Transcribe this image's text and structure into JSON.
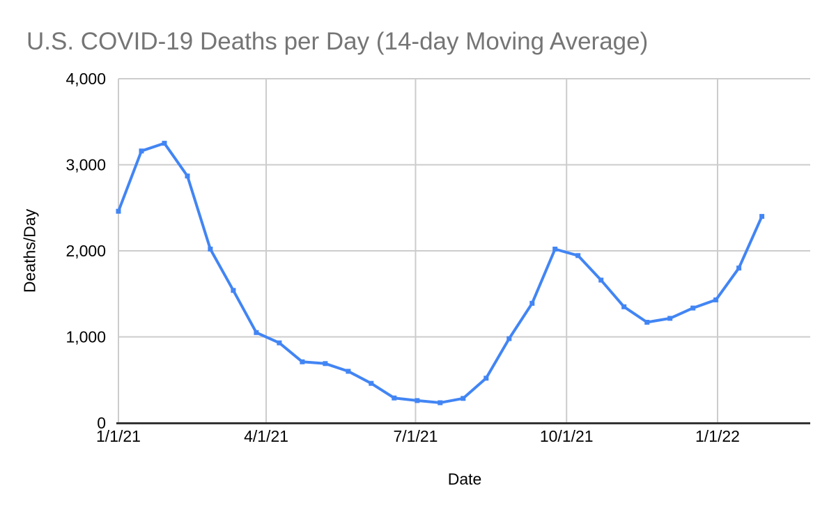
{
  "chart_data": {
    "type": "line",
    "title": "U.S. COVID-19 Deaths per Day (14-day Moving Average)",
    "xlabel": "Date",
    "ylabel": "Deaths/Day",
    "legend_position": "none",
    "grid": true,
    "ylim": [
      0,
      4000
    ],
    "y_ticks": [
      0,
      1000,
      2000,
      3000,
      4000
    ],
    "y_tick_labels": [
      "0",
      "1,000",
      "2,000",
      "3,000",
      "4,000"
    ],
    "x_tick_labels": [
      "1/1/21",
      "4/1/21",
      "7/1/21",
      "10/1/21",
      "1/1/22"
    ],
    "x_tick_days": [
      0,
      90,
      181,
      273,
      365
    ],
    "x_axis_range_days": [
      0,
      421.5
    ],
    "colors": {
      "series": "#4285f4",
      "grid": "#cccccc",
      "axis": "#333333",
      "title": "#757575",
      "tick_label": "#000000",
      "background": "#ffffff"
    },
    "series": [
      {
        "name": "Deaths/Day",
        "color": "#4285f4",
        "marker": "square",
        "points": [
          {
            "date": "1/1/21",
            "day": 0,
            "value": 2460
          },
          {
            "date": "1/15/21",
            "day": 14,
            "value": 3160
          },
          {
            "date": "1/29/21",
            "day": 28,
            "value": 3250
          },
          {
            "date": "2/12/21",
            "day": 42,
            "value": 2870
          },
          {
            "date": "2/26/21",
            "day": 56,
            "value": 2020
          },
          {
            "date": "3/12/21",
            "day": 70,
            "value": 1540
          },
          {
            "date": "3/26/21",
            "day": 84,
            "value": 1050
          },
          {
            "date": "4/9/21",
            "day": 98,
            "value": 930
          },
          {
            "date": "4/23/21",
            "day": 112,
            "value": 710
          },
          {
            "date": "5/7/21",
            "day": 126,
            "value": 690
          },
          {
            "date": "5/21/21",
            "day": 140,
            "value": 600
          },
          {
            "date": "6/4/21",
            "day": 154,
            "value": 460
          },
          {
            "date": "6/18/21",
            "day": 168,
            "value": 290
          },
          {
            "date": "7/2/21",
            "day": 182,
            "value": 260
          },
          {
            "date": "7/16/21",
            "day": 196,
            "value": 235
          },
          {
            "date": "7/30/21",
            "day": 210,
            "value": 285
          },
          {
            "date": "8/13/21",
            "day": 224,
            "value": 520
          },
          {
            "date": "8/27/21",
            "day": 238,
            "value": 980
          },
          {
            "date": "9/10/21",
            "day": 252,
            "value": 1390
          },
          {
            "date": "9/24/21",
            "day": 266,
            "value": 2020
          },
          {
            "date": "10/8/21",
            "day": 280,
            "value": 1945
          },
          {
            "date": "10/22/21",
            "day": 294,
            "value": 1660
          },
          {
            "date": "11/5/21",
            "day": 308,
            "value": 1350
          },
          {
            "date": "11/19/21",
            "day": 322,
            "value": 1170
          },
          {
            "date": "12/3/21",
            "day": 336,
            "value": 1215
          },
          {
            "date": "12/17/21",
            "day": 350,
            "value": 1335
          },
          {
            "date": "12/31/21",
            "day": 364,
            "value": 1430
          },
          {
            "date": "1/14/22",
            "day": 378,
            "value": 1800
          },
          {
            "date": "1/28/22",
            "day": 392,
            "value": 2400
          }
        ]
      }
    ]
  }
}
